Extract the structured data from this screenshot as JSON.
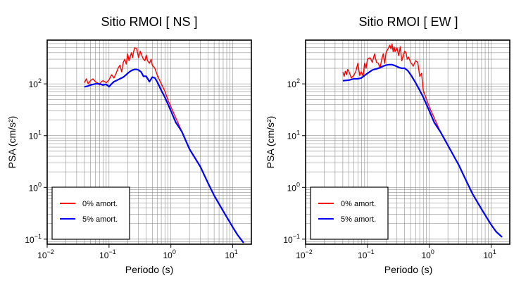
{
  "chart_data": [
    {
      "type": "line",
      "title": "Sitio RMOI [ NS ]",
      "xlabel": "Periodo (s)",
      "ylabel": "PSA (cm/s²)",
      "xscale": "log",
      "yscale": "log",
      "xlim": [
        0.01,
        20
      ],
      "ylim": [
        0.08,
        700
      ],
      "grid": true,
      "legend_position": "bottom-left",
      "xticks": [
        {
          "value": 0.01,
          "base": "10",
          "exp": "−2"
        },
        {
          "value": 0.1,
          "base": "10",
          "exp": "−1"
        },
        {
          "value": 1,
          "base": "10",
          "exp": "0"
        },
        {
          "value": 10,
          "base": "10",
          "exp": "1"
        }
      ],
      "yticks": [
        {
          "value": 0.1,
          "base": "10",
          "exp": "−1"
        },
        {
          "value": 1,
          "base": "10",
          "exp": "0"
        },
        {
          "value": 10,
          "base": "10",
          "exp": "1"
        },
        {
          "value": 100,
          "base": "10",
          "exp": "2"
        }
      ],
      "series": [
        {
          "name": "0% amort.",
          "color": "#ff0000",
          "x": [
            0.04,
            0.043,
            0.046,
            0.05,
            0.055,
            0.06,
            0.065,
            0.07,
            0.075,
            0.08,
            0.085,
            0.09,
            0.1,
            0.11,
            0.12,
            0.13,
            0.14,
            0.15,
            0.16,
            0.17,
            0.18,
            0.19,
            0.2,
            0.21,
            0.22,
            0.23,
            0.24,
            0.25,
            0.26,
            0.28,
            0.3,
            0.32,
            0.34,
            0.36,
            0.38,
            0.4,
            0.42,
            0.45,
            0.48,
            0.5,
            0.55,
            0.6,
            0.65,
            0.7,
            0.8,
            0.9,
            1.0,
            1.2,
            1.5,
            2.0,
            3.0,
            4.0,
            5.0,
            7.0,
            10.0,
            12.0,
            15.0
          ],
          "y": [
            105,
            125,
            100,
            115,
            125,
            110,
            105,
            95,
            110,
            115,
            110,
            105,
            120,
            150,
            130,
            160,
            200,
            230,
            170,
            260,
            300,
            240,
            380,
            280,
            330,
            400,
            320,
            420,
            500,
            480,
            320,
            430,
            350,
            300,
            280,
            360,
            280,
            250,
            300,
            230,
            200,
            150,
            120,
            100,
            72,
            48,
            36,
            22,
            12,
            5.5,
            2.5,
            1.2,
            0.7,
            0.35,
            0.17,
            0.12,
            0.085
          ]
        },
        {
          "name": "5% amort.",
          "color": "#0000ff",
          "x": [
            0.04,
            0.045,
            0.05,
            0.06,
            0.07,
            0.08,
            0.09,
            0.1,
            0.11,
            0.12,
            0.13,
            0.14,
            0.15,
            0.17,
            0.19,
            0.2,
            0.22,
            0.24,
            0.26,
            0.28,
            0.3,
            0.33,
            0.36,
            0.4,
            0.45,
            0.5,
            0.55,
            0.6,
            0.65,
            0.7,
            0.8,
            0.9,
            1.0,
            1.2,
            1.5,
            2.0,
            3.0,
            4.0,
            5.0,
            7.0,
            10.0,
            12.0,
            15.0
          ],
          "y": [
            88,
            90,
            95,
            100,
            100,
            95,
            98,
            88,
            100,
            110,
            115,
            120,
            125,
            135,
            150,
            160,
            175,
            185,
            190,
            190,
            185,
            170,
            140,
            140,
            110,
            135,
            130,
            110,
            90,
            75,
            55,
            40,
            30,
            18,
            12,
            5.5,
            2.5,
            1.2,
            0.7,
            0.35,
            0.17,
            0.12,
            0.085
          ]
        }
      ]
    },
    {
      "type": "line",
      "title": "Sitio RMOI [ EW ]",
      "xlabel": "Periodo (s)",
      "ylabel": "PSA (cm/s²)",
      "xscale": "log",
      "yscale": "log",
      "xlim": [
        0.01,
        20
      ],
      "ylim": [
        0.08,
        700
      ],
      "grid": true,
      "legend_position": "bottom-left",
      "xticks": [
        {
          "value": 0.01,
          "base": "10",
          "exp": "−2"
        },
        {
          "value": 0.1,
          "base": "10",
          "exp": "−1"
        },
        {
          "value": 1,
          "base": "10",
          "exp": "0"
        },
        {
          "value": 10,
          "base": "10",
          "exp": "1"
        }
      ],
      "yticks": [
        {
          "value": 0.1,
          "base": "10",
          "exp": "−1"
        },
        {
          "value": 1,
          "base": "10",
          "exp": "0"
        },
        {
          "value": 10,
          "base": "10",
          "exp": "1"
        },
        {
          "value": 100,
          "base": "10",
          "exp": "2"
        }
      ],
      "series": [
        {
          "name": "0% amort.",
          "color": "#ff0000",
          "x": [
            0.04,
            0.042,
            0.044,
            0.046,
            0.048,
            0.05,
            0.055,
            0.06,
            0.065,
            0.07,
            0.075,
            0.08,
            0.085,
            0.09,
            0.095,
            0.1,
            0.11,
            0.12,
            0.13,
            0.14,
            0.15,
            0.16,
            0.17,
            0.18,
            0.19,
            0.2,
            0.21,
            0.22,
            0.23,
            0.24,
            0.25,
            0.26,
            0.27,
            0.28,
            0.3,
            0.32,
            0.34,
            0.36,
            0.38,
            0.4,
            0.42,
            0.44,
            0.46,
            0.5,
            0.55,
            0.6,
            0.65,
            0.7,
            0.75,
            0.8,
            0.9,
            1.0,
            1.2,
            1.5,
            2.0,
            3.0,
            4.0,
            5.0,
            7.0,
            10.0,
            12.0,
            15.0
          ],
          "y": [
            170,
            140,
            175,
            150,
            190,
            175,
            130,
            145,
            175,
            250,
            145,
            170,
            140,
            250,
            200,
            300,
            320,
            260,
            380,
            260,
            250,
            200,
            300,
            380,
            250,
            400,
            450,
            500,
            560,
            470,
            590,
            420,
            520,
            420,
            500,
            350,
            520,
            280,
            350,
            430,
            400,
            300,
            330,
            260,
            220,
            280,
            260,
            140,
            160,
            75,
            50,
            36,
            22,
            12,
            6.5,
            2.7,
            1.3,
            0.75,
            0.38,
            0.19,
            0.14,
            0.11
          ]
        },
        {
          "name": "5% amort.",
          "color": "#0000ff",
          "x": [
            0.04,
            0.05,
            0.06,
            0.07,
            0.08,
            0.09,
            0.1,
            0.12,
            0.14,
            0.16,
            0.18,
            0.2,
            0.22,
            0.25,
            0.28,
            0.3,
            0.33,
            0.36,
            0.4,
            0.45,
            0.5,
            0.55,
            0.6,
            0.7,
            0.8,
            0.9,
            1.0,
            1.2,
            1.5,
            2.0,
            3.0,
            4.0,
            5.0,
            7.0,
            10.0,
            12.0,
            15.0
          ],
          "y": [
            115,
            118,
            125,
            125,
            130,
            145,
            160,
            185,
            195,
            205,
            220,
            230,
            235,
            235,
            225,
            215,
            205,
            200,
            200,
            180,
            150,
            125,
            105,
            75,
            55,
            40,
            30,
            18,
            12,
            6.5,
            2.7,
            1.3,
            0.75,
            0.38,
            0.19,
            0.14,
            0.11
          ]
        }
      ]
    }
  ]
}
